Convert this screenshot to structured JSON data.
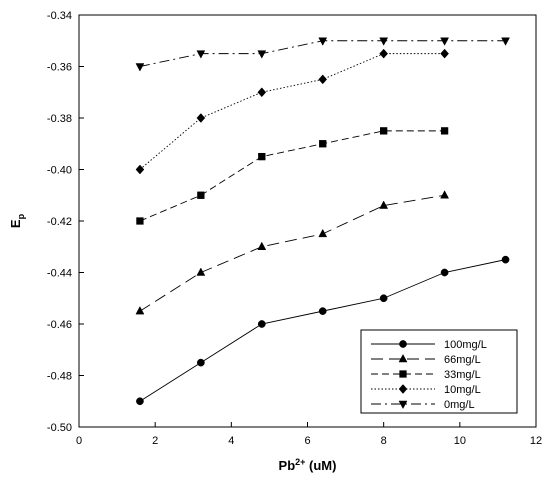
{
  "chart_data": {
    "type": "line",
    "title": "",
    "xlabel": {
      "base": "Pb",
      "sup": "2+",
      "suffix": " (uM)"
    },
    "ylabel": {
      "base": "E",
      "sub": "p"
    },
    "xlim": [
      0,
      12
    ],
    "ylim": [
      -0.5,
      -0.34
    ],
    "x_ticks": [
      0,
      2,
      4,
      6,
      8,
      10,
      12
    ],
    "y_ticks": [
      -0.5,
      -0.48,
      -0.46,
      -0.44,
      -0.42,
      -0.4,
      -0.38,
      -0.36,
      -0.34
    ],
    "x_tick_labels": [
      "0",
      "2",
      "4",
      "6",
      "8",
      "10",
      "12"
    ],
    "y_tick_labels": [
      "-0.50",
      "-0.48",
      "-0.46",
      "-0.44",
      "-0.42",
      "-0.40",
      "-0.38",
      "-0.36",
      "-0.34"
    ],
    "grid": false,
    "legend_position": "bottom-right",
    "series": [
      {
        "name": "100mg/L",
        "marker": "circle",
        "line_style": "solid",
        "x": [
          1.6,
          3.2,
          4.8,
          6.4,
          8.0,
          9.6,
          11.2
        ],
        "y": [
          -0.49,
          -0.475,
          -0.46,
          -0.455,
          -0.45,
          -0.44,
          -0.435
        ]
      },
      {
        "name": "66mg/L",
        "marker": "triangle-up",
        "line_style": "long-dash",
        "x": [
          1.6,
          3.2,
          4.8,
          6.4,
          8.0,
          9.6
        ],
        "y": [
          -0.455,
          -0.44,
          -0.43,
          -0.425,
          -0.414,
          -0.41
        ]
      },
      {
        "name": "33mg/L",
        "marker": "square",
        "line_style": "dashed",
        "x": [
          1.6,
          3.2,
          4.8,
          6.4,
          8.0,
          9.6
        ],
        "y": [
          -0.42,
          -0.41,
          -0.395,
          -0.39,
          -0.385,
          -0.385
        ]
      },
      {
        "name": "10mg/L",
        "marker": "diamond",
        "line_style": "dotted",
        "x": [
          1.6,
          3.2,
          4.8,
          6.4,
          8.0,
          9.6
        ],
        "y": [
          -0.4,
          -0.38,
          -0.37,
          -0.365,
          -0.355,
          -0.355
        ]
      },
      {
        "name": "0mg/L",
        "marker": "triangle-down",
        "line_style": "dash-dot",
        "x": [
          1.6,
          3.2,
          4.8,
          6.4,
          8.0,
          9.6,
          11.2
        ],
        "y": [
          -0.36,
          -0.355,
          -0.355,
          -0.35,
          -0.35,
          -0.35,
          -0.35
        ]
      }
    ],
    "colors": {
      "line": "#000000",
      "marker": "#000000",
      "background": "#ffffff"
    }
  }
}
